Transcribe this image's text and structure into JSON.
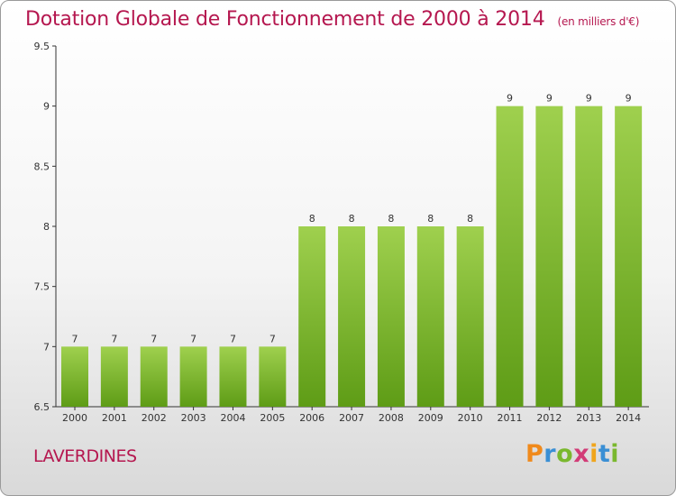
{
  "chart_data": {
    "type": "bar",
    "title": "Dotation Globale de Fonctionnement de 2000 à 2014",
    "unit": "(en milliers d'€)",
    "categories": [
      "2000",
      "2001",
      "2002",
      "2003",
      "2004",
      "2005",
      "2006",
      "2007",
      "2008",
      "2009",
      "2010",
      "2011",
      "2012",
      "2013",
      "2014"
    ],
    "values": [
      7,
      7,
      7,
      7,
      7,
      7,
      8,
      8,
      8,
      8,
      8,
      9,
      9,
      9,
      9
    ],
    "ylim": [
      6.5,
      9.5
    ],
    "yticks": [
      "6.5",
      "7",
      "7.5",
      "8",
      "8.5",
      "9",
      "9.5"
    ],
    "grid": false,
    "colors": {
      "bar_top": "#9fd04e",
      "bar_bottom": "#5e9c16",
      "text": "#b5174f"
    }
  },
  "footer": {
    "commune": "LAVERDINES",
    "logo": "Proxiti"
  }
}
